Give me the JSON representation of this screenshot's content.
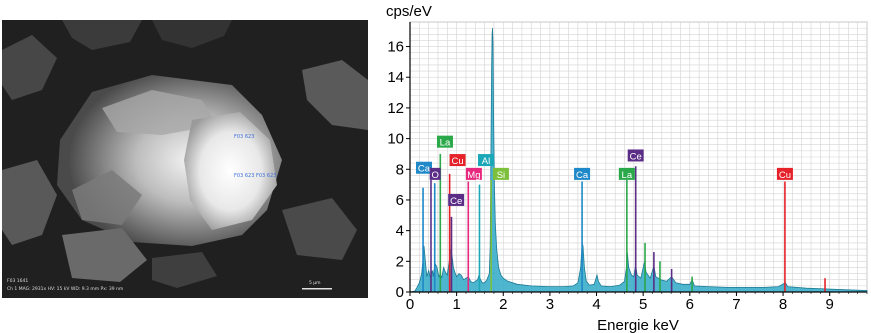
{
  "sem_image": {
    "annotations": [
      "F03 623",
      "F03 623",
      "F03 623"
    ],
    "footer_line1": "F03 1641",
    "footer_line2": "Ch 1   MAG: 2931x   HV: 15 kV   WD: 9.3 mm   Px: 39 nm",
    "scale_bar_label": "5 µm"
  },
  "chart_data": {
    "type": "line",
    "ylabel": "cps/eV",
    "xlabel": "Energie  keV",
    "xlim": [
      0,
      9.8
    ],
    "ylim": [
      0,
      17.6
    ],
    "xticks": [
      0,
      1,
      2,
      3,
      4,
      5,
      6,
      7,
      8,
      9
    ],
    "yticks": [
      0,
      2,
      4,
      6,
      8,
      10,
      12,
      14,
      16
    ],
    "grid": true,
    "spectrum": [
      [
        0.0,
        0.0
      ],
      [
        0.1,
        0.05
      ],
      [
        0.15,
        0.3
      ],
      [
        0.2,
        0.6
      ],
      [
        0.25,
        1.2
      ],
      [
        0.28,
        2.2
      ],
      [
        0.3,
        3.0
      ],
      [
        0.33,
        2.0
      ],
      [
        0.36,
        1.0
      ],
      [
        0.38,
        1.2
      ],
      [
        0.4,
        1.4
      ],
      [
        0.43,
        1.0
      ],
      [
        0.46,
        1.2
      ],
      [
        0.48,
        1.4
      ],
      [
        0.5,
        1.0
      ],
      [
        0.52,
        1.5
      ],
      [
        0.55,
        1.8
      ],
      [
        0.58,
        1.6
      ],
      [
        0.62,
        1.0
      ],
      [
        0.65,
        1.2
      ],
      [
        0.68,
        0.9
      ],
      [
        0.72,
        1.6
      ],
      [
        0.76,
        1.3
      ],
      [
        0.8,
        1.1
      ],
      [
        0.85,
        2.2
      ],
      [
        0.88,
        2.8
      ],
      [
        0.9,
        2.4
      ],
      [
        0.93,
        1.6
      ],
      [
        0.96,
        1.3
      ],
      [
        1.0,
        1.0
      ],
      [
        1.05,
        1.2
      ],
      [
        1.1,
        1.1
      ],
      [
        1.15,
        0.8
      ],
      [
        1.2,
        0.9
      ],
      [
        1.25,
        1.0
      ],
      [
        1.3,
        0.7
      ],
      [
        1.35,
        0.6
      ],
      [
        1.4,
        0.7
      ],
      [
        1.45,
        0.8
      ],
      [
        1.48,
        1.1
      ],
      [
        1.5,
        0.9
      ],
      [
        1.55,
        0.6
      ],
      [
        1.6,
        0.6
      ],
      [
        1.65,
        0.8
      ],
      [
        1.7,
        1.2
      ],
      [
        1.72,
        3.0
      ],
      [
        1.74,
        10.5
      ],
      [
        1.75,
        14.5
      ],
      [
        1.76,
        16.8
      ],
      [
        1.77,
        17.2
      ],
      [
        1.78,
        16.2
      ],
      [
        1.79,
        12.0
      ],
      [
        1.81,
        7.0
      ],
      [
        1.83,
        4.5
      ],
      [
        1.86,
        2.8
      ],
      [
        1.9,
        1.6
      ],
      [
        1.95,
        1.1
      ],
      [
        2.0,
        0.9
      ],
      [
        2.1,
        0.7
      ],
      [
        2.3,
        0.5
      ],
      [
        2.6,
        0.4
      ],
      [
        3.0,
        0.35
      ],
      [
        3.3,
        0.35
      ],
      [
        3.5,
        0.4
      ],
      [
        3.6,
        0.6
      ],
      [
        3.66,
        1.6
      ],
      [
        3.69,
        3.2
      ],
      [
        3.71,
        3.0
      ],
      [
        3.74,
        1.6
      ],
      [
        3.78,
        0.7
      ],
      [
        3.85,
        0.45
      ],
      [
        3.95,
        0.5
      ],
      [
        4.01,
        1.1
      ],
      [
        4.04,
        0.7
      ],
      [
        4.1,
        0.4
      ],
      [
        4.3,
        0.35
      ],
      [
        4.5,
        0.45
      ],
      [
        4.6,
        0.7
      ],
      [
        4.64,
        1.6
      ],
      [
        4.66,
        2.6
      ],
      [
        4.69,
        1.6
      ],
      [
        4.75,
        1.1
      ],
      [
        4.8,
        1.0
      ],
      [
        4.84,
        1.8
      ],
      [
        4.87,
        1.1
      ],
      [
        4.95,
        0.9
      ],
      [
        5.03,
        2.0
      ],
      [
        5.06,
        1.3
      ],
      [
        5.15,
        0.9
      ],
      [
        5.23,
        1.7
      ],
      [
        5.27,
        1.0
      ],
      [
        5.38,
        0.8
      ],
      [
        5.5,
        0.7
      ],
      [
        5.61,
        1.0
      ],
      [
        5.7,
        0.6
      ],
      [
        5.85,
        0.5
      ],
      [
        6.0,
        0.5
      ],
      [
        6.05,
        0.8
      ],
      [
        6.1,
        0.4
      ],
      [
        6.4,
        0.35
      ],
      [
        6.8,
        0.3
      ],
      [
        7.2,
        0.3
      ],
      [
        7.6,
        0.3
      ],
      [
        7.9,
        0.35
      ],
      [
        8.05,
        0.6
      ],
      [
        8.1,
        0.35
      ],
      [
        8.5,
        0.25
      ],
      [
        8.9,
        0.2
      ],
      [
        9.3,
        0.15
      ],
      [
        9.8,
        0.1
      ]
    ],
    "element_lines": [
      {
        "energy": 0.28,
        "height": 6.8,
        "color": "#1e88c9"
      },
      {
        "energy": 0.45,
        "height": 7.3,
        "color": "#5b2d86"
      },
      {
        "energy": 0.53,
        "height": 7.1,
        "color": "#1e88c9"
      },
      {
        "energy": 0.65,
        "height": 9.0,
        "color": "#2aa84a"
      },
      {
        "energy": 0.85,
        "height": 7.7,
        "color": "#e52229"
      },
      {
        "energy": 0.89,
        "height": 4.9,
        "color": "#5b2d86"
      },
      {
        "energy": 1.25,
        "height": 7.2,
        "color": "#e6287e"
      },
      {
        "energy": 1.49,
        "height": 7.0,
        "color": "#1aa7b8"
      },
      {
        "energy": 1.74,
        "height": 7.3,
        "color": "#7cbf3b"
      },
      {
        "energy": 3.69,
        "height": 7.2,
        "color": "#1e88c9"
      },
      {
        "energy": 4.65,
        "height": 7.3,
        "color": "#2aa84a"
      },
      {
        "energy": 4.84,
        "height": 8.2,
        "color": "#5b2d86"
      },
      {
        "energy": 8.04,
        "height": 7.2,
        "color": "#e52229"
      },
      {
        "energy": 5.04,
        "height": 3.2,
        "color": "#2aa84a"
      },
      {
        "energy": 5.23,
        "height": 2.6,
        "color": "#5b2d86"
      },
      {
        "energy": 5.36,
        "height": 2.0,
        "color": "#2aa84a"
      },
      {
        "energy": 5.61,
        "height": 1.5,
        "color": "#5b2d86"
      },
      {
        "energy": 6.05,
        "height": 1.0,
        "color": "#2aa84a"
      },
      {
        "energy": 8.9,
        "height": 0.9,
        "color": "#e52229"
      }
    ],
    "element_labels": [
      {
        "label": "Ca",
        "energy": 0.3,
        "y": 8.1,
        "color": "#1e88c9"
      },
      {
        "label": "O",
        "energy": 0.54,
        "y": 7.7,
        "color": "#5b2d86"
      },
      {
        "label": "La",
        "energy": 0.75,
        "y": 9.8,
        "color": "#2aa84a"
      },
      {
        "label": "Cu",
        "energy": 1.02,
        "y": 8.6,
        "color": "#e52229"
      },
      {
        "label": "Mg",
        "energy": 1.37,
        "y": 7.7,
        "color": "#e6287e"
      },
      {
        "label": "Al",
        "energy": 1.63,
        "y": 8.6,
        "color": "#1aa7b8"
      },
      {
        "label": "Si",
        "energy": 1.95,
        "y": 7.7,
        "color": "#7cbf3b"
      },
      {
        "label": "Ce",
        "energy": 0.99,
        "y": 6.0,
        "color": "#5b2d86"
      },
      {
        "label": "Ca",
        "energy": 3.69,
        "y": 7.7,
        "color": "#1e88c9"
      },
      {
        "label": "La",
        "energy": 4.65,
        "y": 7.7,
        "color": "#2aa84a"
      },
      {
        "label": "Ce",
        "energy": 4.84,
        "y": 8.9,
        "color": "#5b2d86"
      },
      {
        "label": "Cu",
        "energy": 8.04,
        "y": 7.7,
        "color": "#e52229"
      }
    ],
    "colors": {
      "spectrum_fill": "#2fa9c7",
      "spectrum_stroke": "#1c7a96",
      "grid": "#d3d3d3",
      "axis": "#000000"
    }
  }
}
